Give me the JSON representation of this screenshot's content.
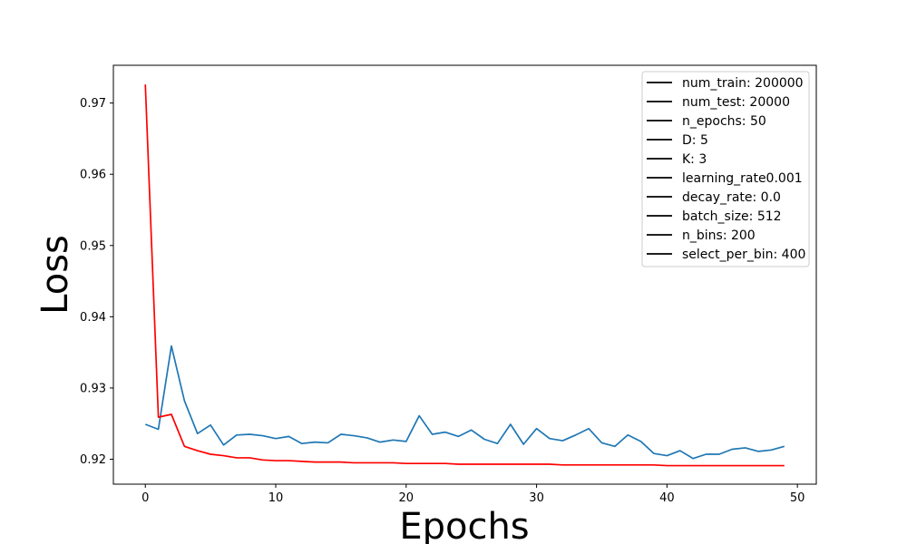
{
  "chart_data": {
    "type": "line",
    "title": "",
    "xlabel": "Epochs",
    "ylabel": "Loss",
    "xlim": [
      -2.45,
      51.45
    ],
    "ylim": [
      0.9165,
      0.9753
    ],
    "xticks": [
      0,
      10,
      20,
      30,
      40,
      50
    ],
    "yticks": [
      0.92,
      0.93,
      0.94,
      0.95,
      0.96,
      0.97
    ],
    "x": [
      0,
      1,
      2,
      3,
      4,
      5,
      6,
      7,
      8,
      9,
      10,
      11,
      12,
      13,
      14,
      15,
      16,
      17,
      18,
      19,
      20,
      21,
      22,
      23,
      24,
      25,
      26,
      27,
      28,
      29,
      30,
      31,
      32,
      33,
      34,
      35,
      36,
      37,
      38,
      39,
      40,
      41,
      42,
      43,
      44,
      45,
      46,
      47,
      48,
      49
    ],
    "series": [
      {
        "color": "#1f77b4",
        "values": [
          0.9249,
          0.9242,
          0.9359,
          0.9282,
          0.9236,
          0.9248,
          0.922,
          0.9234,
          0.9235,
          0.9233,
          0.9229,
          0.9232,
          0.9222,
          0.9224,
          0.9223,
          0.9235,
          0.9233,
          0.923,
          0.9224,
          0.9227,
          0.9225,
          0.9261,
          0.9235,
          0.9238,
          0.9232,
          0.9241,
          0.9228,
          0.9222,
          0.9249,
          0.9221,
          0.9243,
          0.9229,
          0.9226,
          0.9234,
          0.9243,
          0.9223,
          0.9218,
          0.9234,
          0.9225,
          0.9208,
          0.9205,
          0.9212,
          0.9201,
          0.9207,
          0.9207,
          0.9214,
          0.9216,
          0.9211,
          0.9213,
          0.9218
        ]
      },
      {
        "color": "#ff0000",
        "values": [
          0.9726,
          0.9259,
          0.9263,
          0.9218,
          0.9212,
          0.9207,
          0.9205,
          0.9202,
          0.9202,
          0.9199,
          0.9198,
          0.9198,
          0.9197,
          0.9196,
          0.9196,
          0.9196,
          0.9195,
          0.9195,
          0.9195,
          0.9195,
          0.9194,
          0.9194,
          0.9194,
          0.9194,
          0.9193,
          0.9193,
          0.9193,
          0.9193,
          0.9193,
          0.9193,
          0.9193,
          0.9193,
          0.9192,
          0.9192,
          0.9192,
          0.9192,
          0.9192,
          0.9192,
          0.9192,
          0.9192,
          0.9191,
          0.9191,
          0.9191,
          0.9191,
          0.9191,
          0.9191,
          0.9191,
          0.9191,
          0.9191,
          0.9191
        ]
      }
    ],
    "legend": {
      "placement": "upper-right",
      "line_color": "#000000",
      "entries": [
        "num_train: 200000",
        "num_test: 20000",
        "n_epochs: 50",
        "D: 5",
        "K: 3",
        "learning_rate0.001",
        "decay_rate: 0.0",
        "batch_size: 512",
        "n_bins: 200",
        "select_per_bin: 400"
      ]
    },
    "grid": false
  }
}
